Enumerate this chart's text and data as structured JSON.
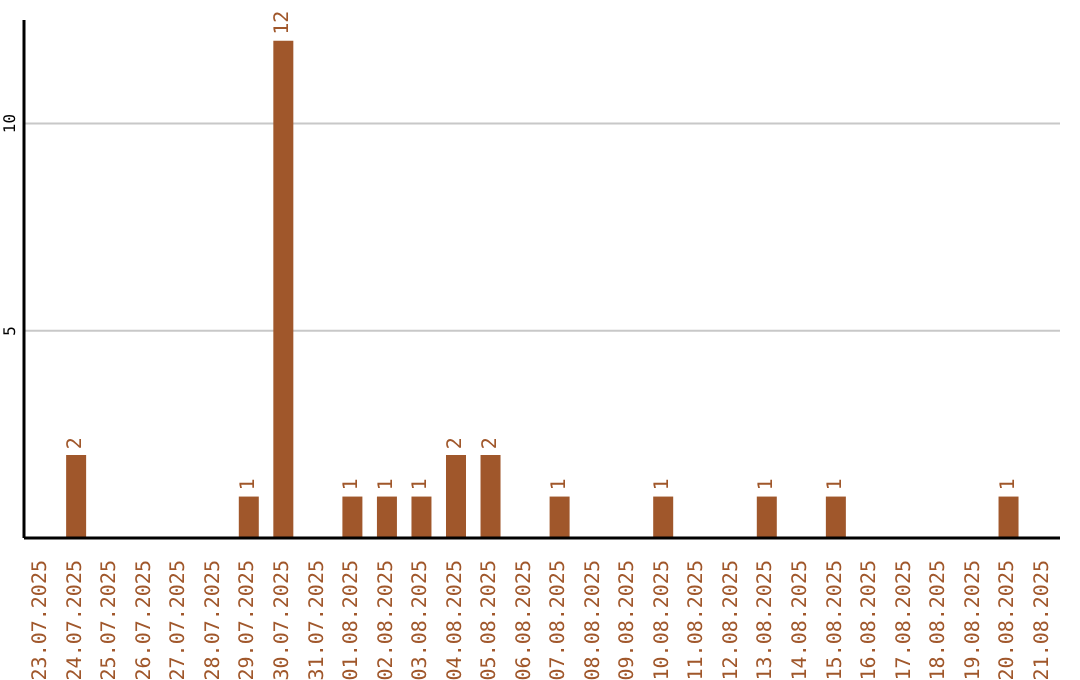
{
  "chart_data": {
    "type": "bar",
    "categories": [
      "23.07.2025",
      "24.07.2025",
      "25.07.2025",
      "26.07.2025",
      "27.07.2025",
      "28.07.2025",
      "29.07.2025",
      "30.07.2025",
      "31.07.2025",
      "01.08.2025",
      "02.08.2025",
      "03.08.2025",
      "04.08.2025",
      "05.08.2025",
      "06.08.2025",
      "07.08.2025",
      "08.08.2025",
      "09.08.2025",
      "10.08.2025",
      "11.08.2025",
      "12.08.2025",
      "13.08.2025",
      "14.08.2025",
      "15.08.2025",
      "16.08.2025",
      "17.08.2025",
      "18.08.2025",
      "19.08.2025",
      "20.08.2025",
      "21.08.2025"
    ],
    "values": [
      0,
      2,
      0,
      0,
      0,
      0,
      1,
      12,
      0,
      1,
      1,
      1,
      2,
      2,
      0,
      1,
      0,
      0,
      1,
      0,
      0,
      1,
      0,
      1,
      0,
      0,
      0,
      0,
      1,
      0
    ],
    "value_labels": [
      null,
      "2",
      null,
      null,
      null,
      null,
      "1",
      "12",
      null,
      "1",
      "1",
      "1",
      "2",
      "2",
      null,
      "1",
      null,
      null,
      "1",
      null,
      null,
      "1",
      null,
      "1",
      null,
      null,
      null,
      null,
      "1",
      null
    ],
    "color": "#a0572b",
    "ylim": [
      0,
      12.5
    ],
    "yticks": [
      5,
      10
    ],
    "grid": "y"
  }
}
